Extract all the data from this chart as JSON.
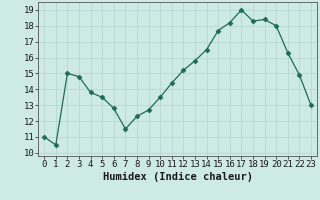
{
  "x": [
    0,
    1,
    2,
    3,
    4,
    5,
    6,
    7,
    8,
    9,
    10,
    11,
    12,
    13,
    14,
    15,
    16,
    17,
    18,
    19,
    20,
    21,
    22,
    23
  ],
  "y": [
    11,
    10.5,
    15,
    14.8,
    13.8,
    13.5,
    12.8,
    11.5,
    12.3,
    12.7,
    13.5,
    14.4,
    15.2,
    15.8,
    16.5,
    17.7,
    18.2,
    19.0,
    18.3,
    18.4,
    18.0,
    16.3,
    14.9,
    13.0
  ],
  "xlabel": "Humidex (Indice chaleur)",
  "xlim": [
    -0.5,
    23.5
  ],
  "ylim": [
    9.8,
    19.5
  ],
  "yticks": [
    10,
    11,
    12,
    13,
    14,
    15,
    16,
    17,
    18,
    19
  ],
  "xticks": [
    0,
    1,
    2,
    3,
    4,
    5,
    6,
    7,
    8,
    9,
    10,
    11,
    12,
    13,
    14,
    15,
    16,
    17,
    18,
    19,
    20,
    21,
    22,
    23
  ],
  "line_color": "#1f6b5a",
  "marker": "D",
  "marker_size": 2.5,
  "bg_color": "#ceeae5",
  "grid_color": "#b8d8d4",
  "xlabel_fontsize": 7.5,
  "tick_fontsize": 6.5
}
